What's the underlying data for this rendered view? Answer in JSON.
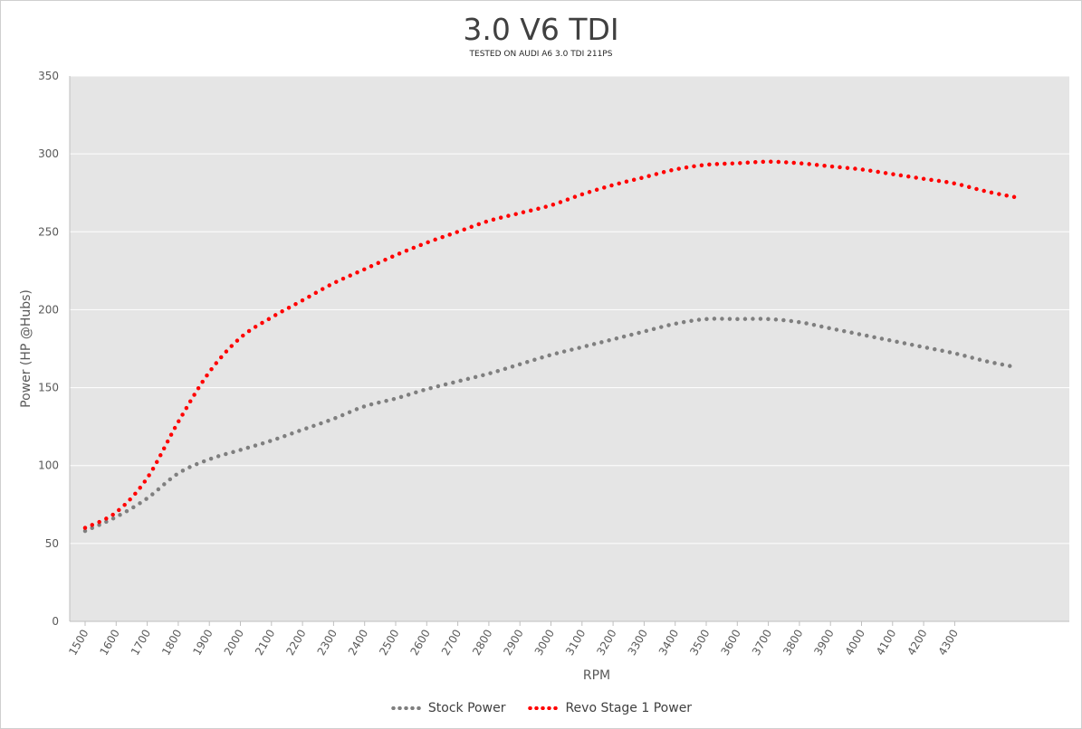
{
  "chart_data": {
    "type": "line",
    "title": "3.0 V6 TDI",
    "subtitle": "TESTED ON AUDI A6 3.0 TDI 211PS",
    "xlabel": "RPM",
    "ylabel": "Power (HP @Hubs)",
    "ylim": [
      0,
      350
    ],
    "yticks": [
      "0",
      "50",
      "100",
      "150",
      "200",
      "250",
      "300",
      "350"
    ],
    "xticks": [
      "1500",
      "1600",
      "1700",
      "1800",
      "1900",
      "2000",
      "2100",
      "2200",
      "2300",
      "2400",
      "2500",
      "2600",
      "2700",
      "2800",
      "2900",
      "3000",
      "3100",
      "3200",
      "3300",
      "3400",
      "3500",
      "3600",
      "3700",
      "3800",
      "3900",
      "4000",
      "4100",
      "4200",
      "4300"
    ],
    "grid": "horizontal",
    "legend_position": "bottom",
    "x": [
      1500,
      1600,
      1700,
      1800,
      1900,
      2000,
      2100,
      2200,
      2300,
      2400,
      2500,
      2600,
      2700,
      2800,
      2900,
      3000,
      3100,
      3200,
      3300,
      3400,
      3500,
      3600,
      3700,
      3800,
      3900,
      4000,
      4100,
      4200,
      4300,
      4400,
      4500
    ],
    "series": [
      {
        "name": "Stock Power",
        "color": "#7f7f7f",
        "values": [
          58,
          67,
          79,
          95,
          104,
          110,
          116,
          123,
          130,
          138,
          143,
          149,
          154,
          159,
          165,
          171,
          176,
          181,
          186,
          191,
          194,
          194,
          194,
          192,
          188,
          184,
          180,
          176,
          172,
          167,
          163
        ]
      },
      {
        "name": "Revo Stage 1 Power",
        "color": "#ff0000",
        "values": [
          60,
          70,
          92,
          128,
          160,
          182,
          195,
          206,
          217,
          226,
          235,
          243,
          250,
          257,
          262,
          267,
          274,
          280,
          285,
          290,
          293,
          294,
          295,
          294,
          292,
          290,
          287,
          284,
          281,
          276,
          272
        ]
      }
    ]
  }
}
